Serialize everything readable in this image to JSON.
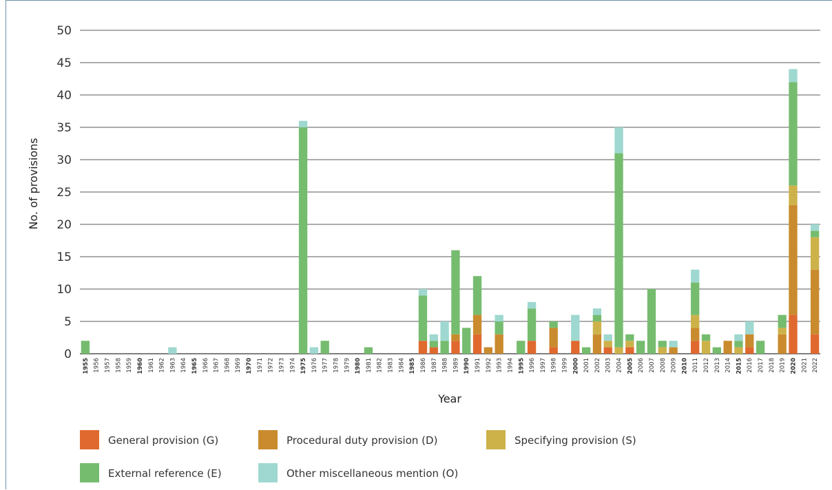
{
  "chart_data": {
    "type": "bar",
    "stacked": true,
    "title": "",
    "xlabel": "Year",
    "ylabel": "No. of provisions",
    "ylim": [
      0,
      50
    ],
    "yticks": [
      0,
      5,
      10,
      15,
      20,
      25,
      30,
      35,
      40,
      45,
      50
    ],
    "grid": "horizontal",
    "legend_position": "bottom",
    "bold_categories": [
      "1955",
      "1960",
      "1965",
      "1970",
      "1975",
      "1980",
      "1985",
      "1990",
      "1995",
      "2000",
      "2005",
      "2010",
      "2015",
      "2020"
    ],
    "categories": [
      "1955",
      "1956",
      "1957",
      "1958",
      "1959",
      "1960",
      "1961",
      "1962",
      "1963",
      "1964",
      "1965",
      "1966",
      "1967",
      "1968",
      "1969",
      "1970",
      "1971",
      "1972",
      "1973",
      "1974",
      "1975",
      "1976",
      "1977",
      "1978",
      "1979",
      "1980",
      "1981",
      "1982",
      "1983",
      "1984",
      "1985",
      "1986",
      "1987",
      "1988",
      "1989",
      "1990",
      "1991",
      "1992",
      "1993",
      "1994",
      "1995",
      "1996",
      "1997",
      "1998",
      "1999",
      "2000",
      "2001",
      "2002",
      "2003",
      "2004",
      "2005",
      "2006",
      "2007",
      "2008",
      "2009",
      "2010",
      "2011",
      "2012",
      "2013",
      "2014",
      "2015",
      "2016",
      "2017",
      "2018",
      "2019",
      "2020",
      "2021",
      "2022"
    ],
    "series": [
      {
        "name": "General provision (G)",
        "color": "#e0692f",
        "values": [
          0,
          0,
          0,
          0,
          0,
          0,
          0,
          0,
          0,
          0,
          0,
          0,
          0,
          0,
          0,
          0,
          0,
          0,
          0,
          0,
          0,
          0,
          0,
          0,
          0,
          0,
          0,
          0,
          0,
          0,
          0,
          2,
          1,
          0,
          2,
          0,
          3,
          0,
          0,
          0,
          0,
          2,
          0,
          1,
          0,
          2,
          0,
          0,
          1,
          0,
          1,
          0,
          0,
          0,
          0,
          0,
          2,
          0,
          0,
          0,
          0,
          1,
          0,
          0,
          0,
          6,
          0,
          3
        ]
      },
      {
        "name": "Procedural duty provision (D)",
        "color": "#c98b2e",
        "values": [
          0,
          0,
          0,
          0,
          0,
          0,
          0,
          0,
          0,
          0,
          0,
          0,
          0,
          0,
          0,
          0,
          0,
          0,
          0,
          0,
          0,
          0,
          0,
          0,
          0,
          0,
          0,
          0,
          0,
          0,
          0,
          0,
          0,
          0,
          1,
          0,
          3,
          1,
          3,
          0,
          0,
          0,
          0,
          3,
          0,
          0,
          0,
          3,
          0,
          0,
          0,
          0,
          0,
          0,
          1,
          0,
          2,
          0,
          0,
          2,
          0,
          2,
          0,
          0,
          3,
          17,
          0,
          10
        ]
      },
      {
        "name": "Specifying provision (S)",
        "color": "#cdb24a",
        "values": [
          0,
          0,
          0,
          0,
          0,
          0,
          0,
          0,
          0,
          0,
          0,
          0,
          0,
          0,
          0,
          0,
          0,
          0,
          0,
          0,
          0,
          0,
          0,
          0,
          0,
          0,
          0,
          0,
          0,
          0,
          0,
          0,
          0,
          0,
          0,
          0,
          0,
          0,
          0,
          0,
          0,
          0,
          0,
          0,
          0,
          0,
          0,
          2,
          1,
          1,
          1,
          0,
          0,
          1,
          0,
          0,
          2,
          2,
          0,
          0,
          1,
          0,
          0,
          0,
          1,
          3,
          0,
          5
        ]
      },
      {
        "name": "External reference (E)",
        "color": "#76bc6f",
        "values": [
          2,
          0,
          0,
          0,
          0,
          0,
          0,
          0,
          0,
          0,
          0,
          0,
          0,
          0,
          0,
          0,
          0,
          0,
          0,
          0,
          35,
          0,
          2,
          0,
          0,
          0,
          1,
          0,
          0,
          0,
          0,
          7,
          1,
          2,
          13,
          4,
          6,
          0,
          2,
          0,
          2,
          5,
          0,
          1,
          0,
          0,
          1,
          1,
          0,
          30,
          1,
          2,
          10,
          1,
          0,
          0,
          5,
          1,
          1,
          0,
          1,
          0,
          2,
          0,
          2,
          16,
          0,
          1
        ]
      },
      {
        "name": "Other miscellaneous mention (O)",
        "color": "#9ed8d0",
        "values": [
          0,
          0,
          0,
          0,
          0,
          0,
          0,
          0,
          1,
          0,
          0,
          0,
          0,
          0,
          0,
          0,
          0,
          0,
          0,
          0,
          1,
          1,
          0,
          0,
          0,
          0,
          0,
          0,
          0,
          0,
          0,
          1,
          1,
          3,
          0,
          0,
          0,
          0,
          1,
          0,
          0,
          1,
          0,
          0,
          0,
          4,
          0,
          1,
          1,
          4,
          0,
          0,
          0,
          0,
          1,
          0,
          2,
          0,
          0,
          0,
          1,
          2,
          0,
          0,
          0,
          2,
          0,
          1
        ]
      }
    ]
  }
}
